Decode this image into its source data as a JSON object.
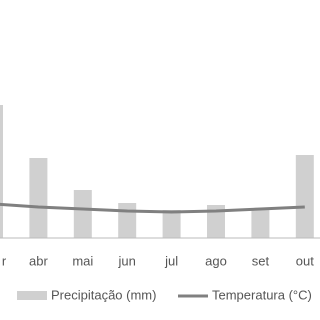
{
  "chart_data": {
    "type": "bar-line",
    "categories": [
      "r",
      "abr",
      "mai",
      "jun",
      "jul",
      "ago",
      "set",
      "out"
    ],
    "series": [
      {
        "name": "Precipitação (mm)",
        "type": "bar",
        "color": "#d0d0d0",
        "values": [
          133,
          80,
          48,
          35,
          28,
          33,
          28,
          83
        ]
      },
      {
        "name": "Temperatura (°C)",
        "type": "line",
        "color": "#808080",
        "values": [
          34,
          31,
          29,
          27,
          26,
          27,
          29,
          31
        ]
      }
    ],
    "ylim": [
      0,
      140
    ],
    "legend": "bottom"
  }
}
